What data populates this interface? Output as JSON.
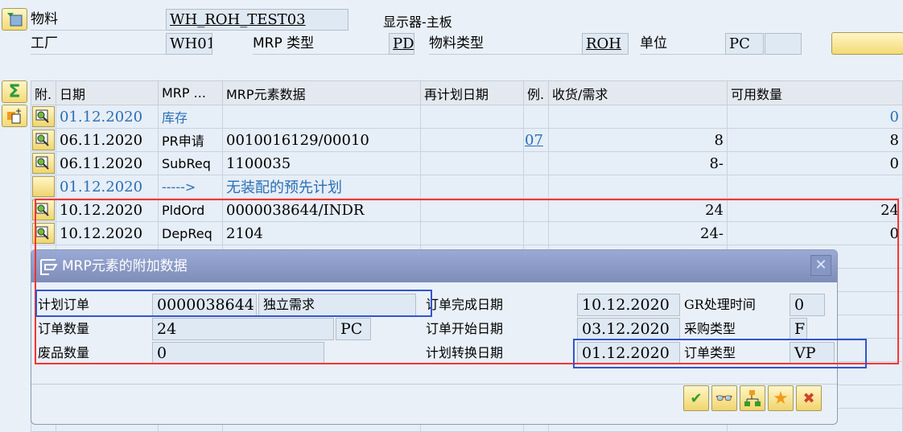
{
  "header": {
    "material_label": "物料",
    "material_value": "WH_ROH_TEST03",
    "material_desc": "显示器-主板",
    "plant_label": "工厂",
    "plant_value": "WH01",
    "mrp_type_label": "MRP 类型",
    "mrp_type_value": "PD",
    "material_type_label": "物料类型",
    "material_type_value": "ROH",
    "unit_label": "单位",
    "unit_value": "PC"
  },
  "table": {
    "columns": [
      "附.",
      "日期",
      "MRP ...",
      "MRP元素数据",
      "再计划日期",
      "例.",
      "收货/需求",
      "可用数量"
    ],
    "rows": [
      {
        "date": "01.12.2020",
        "elem": "库存",
        "data": "",
        "replan": "",
        "ex": "",
        "qty": "",
        "avail": "0",
        "style": "blue"
      },
      {
        "date": "06.11.2020",
        "elem": "PR申请",
        "data": "0010016129/00010",
        "replan": "",
        "ex": "07",
        "qty": "8",
        "avail": "8",
        "style": ""
      },
      {
        "date": "06.11.2020",
        "elem": "SubReq",
        "data": "1100035",
        "replan": "",
        "ex": "",
        "qty": "8-",
        "avail": "0",
        "style": ""
      },
      {
        "date": "01.12.2020",
        "elem": "----->",
        "data": "无装配的预先计划",
        "replan": "",
        "ex": "",
        "qty": "",
        "avail": "",
        "style": "blue"
      },
      {
        "date": "10.12.2020",
        "elem": "PldOrd",
        "data": "0000038644/INDR",
        "replan": "",
        "ex": "",
        "qty": "24",
        "avail": "24",
        "style": ""
      },
      {
        "date": "10.12.2020",
        "elem": "DepReq",
        "data": "2104",
        "replan": "",
        "ex": "",
        "qty": "24-",
        "avail": "0",
        "style": ""
      }
    ]
  },
  "dialog": {
    "title": "MRP元素的附加数据",
    "planned_order_label": "计划订单",
    "planned_order_value": "0000038644",
    "planned_order_desc": "独立需求",
    "order_qty_label": "订单数量",
    "order_qty_value": "24",
    "order_qty_unit": "PC",
    "scrap_qty_label": "废品数量",
    "scrap_qty_value": "0",
    "finish_date_label": "订单完成日期",
    "finish_date_value": "10.12.2020",
    "start_date_label": "订单开始日期",
    "start_date_value": "03.12.2020",
    "convert_date_label": "计划转换日期",
    "convert_date_value": "01.12.2020",
    "gr_time_label": "GR处理时间",
    "gr_time_value": "0",
    "proc_type_label": "采购类型",
    "proc_type_value": "F",
    "order_type_label": "订单类型",
    "order_type_value": "VP"
  },
  "colors": {
    "highlight_red": "#ff3333",
    "highlight_blue": "#3355cc"
  }
}
